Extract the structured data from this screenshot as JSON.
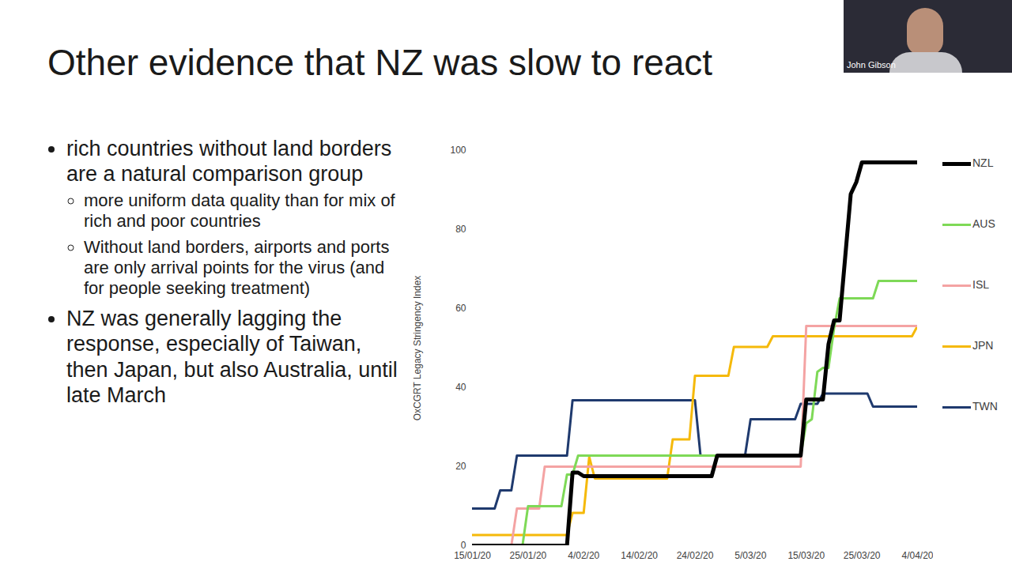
{
  "slide": {
    "title": "Other evidence that NZ was slow to react",
    "presenter": "John Gibson",
    "bullets": [
      {
        "text": "rich countries without land borders are a natural comparison group",
        "sub": [
          "more uniform data quality than for mix of rich and poor countries",
          "Without land borders, airports and ports are only arrival points for the virus (and for people seeking treatment)"
        ]
      },
      {
        "text": "NZ was generally lagging the response, especially of Taiwan, then Japan, but also Australia, until late March"
      }
    ]
  },
  "chart_data": {
    "type": "line",
    "y_label": "OxCGRT Legacy Stringency Index",
    "x": [
      "2020-01-15",
      "2020-01-16",
      "2020-01-17",
      "2020-01-18",
      "2020-01-19",
      "2020-01-20",
      "2020-01-21",
      "2020-01-22",
      "2020-01-23",
      "2020-01-24",
      "2020-01-25",
      "2020-01-26",
      "2020-01-27",
      "2020-01-28",
      "2020-01-29",
      "2020-01-30",
      "2020-01-31",
      "2020-02-01",
      "2020-02-02",
      "2020-02-03",
      "2020-02-04",
      "2020-02-05",
      "2020-02-06",
      "2020-02-07",
      "2020-02-08",
      "2020-02-09",
      "2020-02-10",
      "2020-02-11",
      "2020-02-12",
      "2020-02-13",
      "2020-02-14",
      "2020-02-15",
      "2020-02-16",
      "2020-02-17",
      "2020-02-18",
      "2020-02-19",
      "2020-02-20",
      "2020-02-21",
      "2020-02-22",
      "2020-02-23",
      "2020-02-24",
      "2020-02-25",
      "2020-02-26",
      "2020-02-27",
      "2020-02-28",
      "2020-02-29",
      "2020-03-01",
      "2020-03-02",
      "2020-03-03",
      "2020-03-04",
      "2020-03-05",
      "2020-03-06",
      "2020-03-07",
      "2020-03-08",
      "2020-03-09",
      "2020-03-10",
      "2020-03-11",
      "2020-03-12",
      "2020-03-13",
      "2020-03-14",
      "2020-03-15",
      "2020-03-16",
      "2020-03-17",
      "2020-03-18",
      "2020-03-19",
      "2020-03-20",
      "2020-03-21",
      "2020-03-22",
      "2020-03-23",
      "2020-03-24",
      "2020-03-25",
      "2020-03-26",
      "2020-03-27",
      "2020-03-28",
      "2020-03-29",
      "2020-03-30",
      "2020-03-31",
      "2020-04-01",
      "2020-04-02",
      "2020-04-03",
      "2020-04-04"
    ],
    "series": [
      {
        "name": "NZL",
        "color": "#000000",
        "values": [
          0,
          0,
          0,
          0,
          0,
          0,
          0,
          0,
          0,
          0,
          0,
          0,
          0,
          0,
          0,
          0,
          0,
          0,
          18.5,
          18.5,
          17.6,
          17.6,
          17.6,
          17.6,
          17.6,
          17.6,
          17.6,
          17.6,
          17.6,
          17.6,
          17.6,
          17.6,
          17.6,
          17.6,
          17.6,
          17.6,
          17.6,
          17.6,
          17.6,
          17.6,
          17.6,
          17.6,
          17.6,
          17.6,
          22.8,
          22.8,
          22.8,
          22.8,
          22.8,
          22.8,
          22.8,
          22.8,
          22.8,
          22.8,
          22.8,
          22.8,
          22.8,
          22.8,
          22.8,
          22.8,
          37,
          37,
          37,
          37,
          51,
          57,
          57,
          73,
          89,
          92,
          97,
          97,
          97,
          97,
          97,
          97,
          97,
          97,
          97,
          97,
          97
        ]
      },
      {
        "name": "AUS",
        "color": "#7ed957",
        "values": [
          0,
          0,
          0,
          0,
          0,
          0,
          0,
          0,
          0,
          0,
          10,
          10,
          10,
          10,
          10,
          10,
          10,
          18,
          18,
          22.8,
          22.8,
          22.8,
          22.8,
          22.8,
          22.8,
          22.8,
          22.8,
          22.8,
          22.8,
          22.8,
          22.8,
          22.8,
          22.8,
          22.8,
          22.8,
          22.8,
          22.8,
          22.8,
          22.8,
          22.8,
          22.8,
          22.8,
          22.8,
          22.8,
          22.8,
          22.8,
          22.8,
          22.8,
          22.8,
          22.8,
          22.8,
          22.8,
          22.8,
          22.8,
          22.8,
          22.8,
          22.8,
          22.8,
          22.8,
          22.8,
          31,
          32,
          44,
          45,
          45,
          55,
          62.6,
          62.6,
          62.6,
          62.6,
          62.6,
          62.6,
          62.6,
          67,
          67,
          67,
          67,
          67,
          67,
          67,
          67
        ]
      },
      {
        "name": "ISL",
        "color": "#f4a3a3",
        "values": [
          0,
          0,
          0,
          0,
          0,
          0,
          0,
          0,
          9.4,
          9.4,
          9.4,
          9.4,
          9.4,
          20,
          20,
          20,
          20,
          20,
          20,
          20,
          20,
          20,
          20,
          20,
          20,
          20,
          20,
          20,
          20,
          20,
          20,
          20,
          20,
          20,
          20,
          20,
          20,
          20,
          20,
          20,
          20,
          20,
          20,
          20,
          20,
          20,
          20,
          20,
          20,
          20,
          20,
          20,
          20,
          20,
          20,
          20,
          20,
          20,
          20,
          20,
          55.6,
          55.6,
          55.6,
          55.6,
          55.6,
          55.6,
          55.6,
          55.6,
          55.6,
          55.6,
          55.6,
          55.6,
          55.6,
          55.6,
          55.6,
          55.6,
          55.6,
          55.6,
          55.6,
          55.6,
          55.6
        ]
      },
      {
        "name": "JPN",
        "color": "#f5b90a",
        "values": [
          2.7,
          2.7,
          2.7,
          2.7,
          2.7,
          2.7,
          2.7,
          2.7,
          2.7,
          2.7,
          2.7,
          2.7,
          2.7,
          2.7,
          2.7,
          2.7,
          2.7,
          2.7,
          8.3,
          8.3,
          8.3,
          22.5,
          17,
          17,
          17,
          17,
          17,
          17,
          17,
          17,
          17,
          17,
          17,
          17,
          17,
          17,
          26.9,
          26.9,
          26.9,
          26.9,
          43,
          43,
          43,
          43,
          43,
          43,
          43,
          50.3,
          50.3,
          50.3,
          50.3,
          50.3,
          50.3,
          50.3,
          53,
          53,
          53,
          53,
          53,
          53,
          53,
          53,
          53,
          53,
          53,
          53,
          53,
          53,
          53,
          53,
          53,
          53,
          53,
          53,
          53,
          53,
          53,
          53,
          53,
          53,
          55.6
        ]
      },
      {
        "name": "TWN",
        "color": "#1f3a6e",
        "values": [
          9.4,
          9.4,
          9.4,
          9.4,
          9.4,
          14,
          14,
          14,
          22.8,
          22.8,
          22.8,
          22.8,
          22.8,
          22.8,
          22.8,
          22.8,
          22.8,
          22.8,
          36.8,
          36.8,
          36.8,
          36.8,
          36.8,
          36.8,
          36.8,
          36.8,
          36.8,
          36.8,
          36.8,
          36.8,
          36.8,
          36.8,
          36.8,
          36.8,
          36.8,
          36.8,
          36.8,
          36.8,
          36.8,
          36.8,
          36.8,
          22.8,
          22.8,
          22.8,
          22.8,
          22.8,
          22.8,
          22.8,
          22.8,
          22.8,
          32,
          32,
          32,
          32,
          32,
          32,
          32,
          32,
          32,
          35.9,
          35.9,
          35.9,
          35.9,
          38.5,
          38.5,
          38.5,
          38.5,
          38.5,
          38.5,
          38.5,
          38.5,
          38.5,
          35.2,
          35.2,
          35.2,
          35.2,
          35.2,
          35.2,
          35.2,
          35.2,
          35.2
        ]
      }
    ],
    "xlim": [
      "2020-01-15",
      "2020-04-04"
    ],
    "xticks": [
      {
        "value": "2020-01-15",
        "label": "15/01/20"
      },
      {
        "value": "2020-01-25",
        "label": "25/01/20"
      },
      {
        "value": "2020-02-04",
        "label": "4/02/20"
      },
      {
        "value": "2020-02-14",
        "label": "14/02/20"
      },
      {
        "value": "2020-02-24",
        "label": "24/02/20"
      },
      {
        "value": "2020-03-05",
        "label": "5/03/20"
      },
      {
        "value": "2020-03-15",
        "label": "15/03/20"
      },
      {
        "value": "2020-03-25",
        "label": "25/03/20"
      },
      {
        "value": "2020-04-04",
        "label": "4/04/20"
      }
    ],
    "ylim": [
      0,
      100
    ],
    "yticks": [
      0,
      20,
      40,
      60,
      80,
      100
    ],
    "grid": false,
    "legend": "right"
  }
}
